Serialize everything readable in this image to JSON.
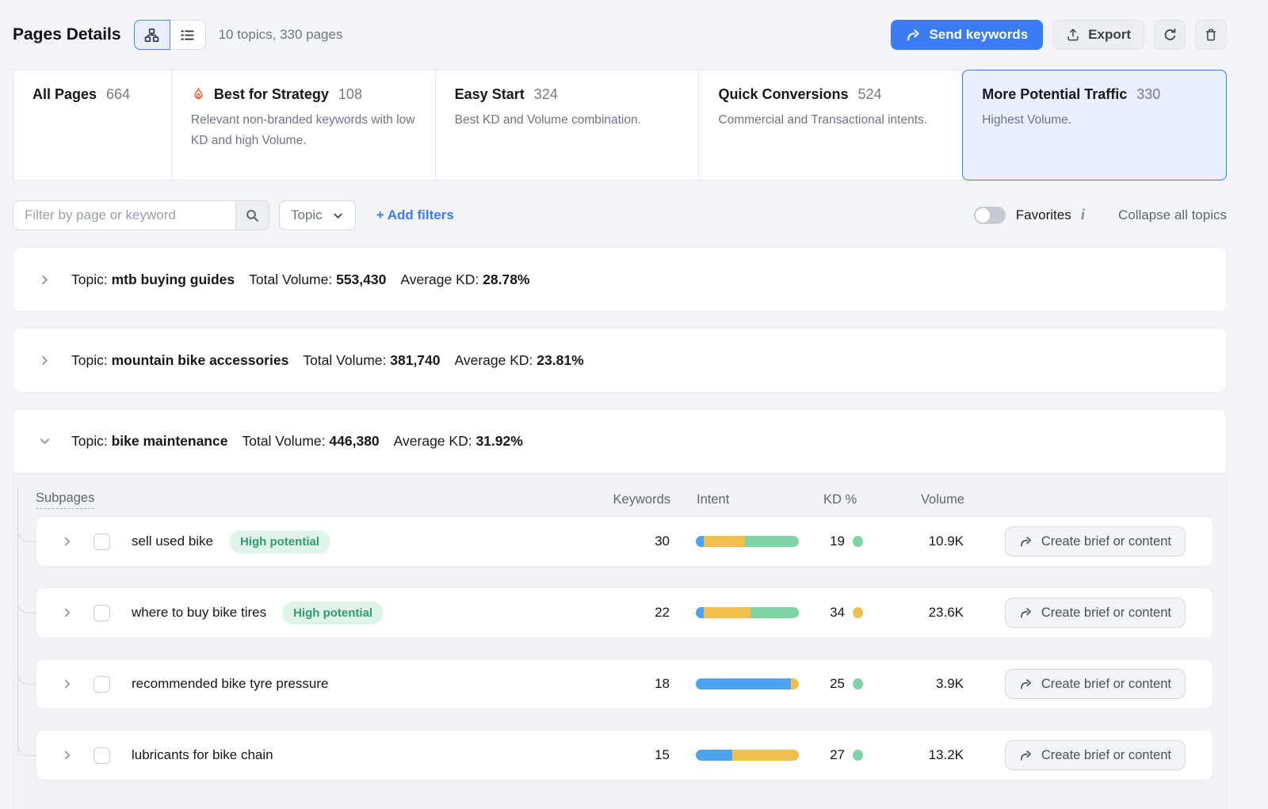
{
  "header": {
    "title": "Pages Details",
    "summary": "10 topics, 330 pages",
    "send_keywords": "Send keywords",
    "export": "Export"
  },
  "tabs": [
    {
      "label": "All Pages",
      "count": "664",
      "description": "",
      "selected": false
    },
    {
      "label": "Best for Strategy",
      "count": "108",
      "description": "Relevant non-branded keywords with low KD and high Volume.",
      "selected": false
    },
    {
      "label": "Easy Start",
      "count": "324",
      "description": "Best KD and Volume combination.",
      "selected": false
    },
    {
      "label": "Quick Conversions",
      "count": "524",
      "description": "Commercial and Transactional intents.",
      "selected": false
    },
    {
      "label": "More Potential Traffic",
      "count": "330",
      "description": "Highest Volume.",
      "selected": true
    }
  ],
  "filter_bar": {
    "search_placeholder": "Filter by page or keyword",
    "topic_dropdown": "Topic",
    "add_filters": "+ Add filters",
    "favorites": "Favorites",
    "favorites_on": false,
    "collapse_all": "Collapse all topics"
  },
  "labels": {
    "topic": "Topic:",
    "total_volume": "Total Volume:",
    "average_kd": "Average KD:"
  },
  "topics": [
    {
      "name": "mtb buying guides",
      "total_volume": "553,430",
      "average_kd": "28.78%",
      "expanded": false
    },
    {
      "name": "mountain bike accessories",
      "total_volume": "381,740",
      "average_kd": "23.81%",
      "expanded": false
    },
    {
      "name": "bike maintenance",
      "total_volume": "446,380",
      "average_kd": "31.92%",
      "expanded": true
    }
  ],
  "table": {
    "columns": {
      "subpages": "Subpages",
      "keywords": "Keywords",
      "intent": "Intent",
      "kd": "KD %",
      "volume": "Volume"
    },
    "action_label": "Create brief or content",
    "rows": [
      {
        "name": "sell used bike",
        "badge": "High potential",
        "keywords": "30",
        "intent": [
          {
            "color": "#4da3f0",
            "pct": 8
          },
          {
            "color": "#f0bf4d",
            "pct": 40
          },
          {
            "color": "#7fd4a3",
            "pct": 52
          }
        ],
        "kd": "19",
        "kd_dot": "#7fd4a3",
        "volume": "10.9K",
        "checked": false
      },
      {
        "name": "where to buy bike tires",
        "badge": "High potential",
        "keywords": "22",
        "intent": [
          {
            "color": "#4da3f0",
            "pct": 8
          },
          {
            "color": "#f0bf4d",
            "pct": 45
          },
          {
            "color": "#7fd4a3",
            "pct": 47
          }
        ],
        "kd": "34",
        "kd_dot": "#f0bf4d",
        "volume": "23.6K",
        "checked": false
      },
      {
        "name": "recommended bike tyre pressure",
        "badge": "",
        "keywords": "18",
        "intent": [
          {
            "color": "#4da3f0",
            "pct": 92
          },
          {
            "color": "#f0bf4d",
            "pct": 8
          }
        ],
        "kd": "25",
        "kd_dot": "#7fd4a3",
        "volume": "3.9K",
        "checked": false
      },
      {
        "name": "lubricants for bike chain",
        "badge": "",
        "keywords": "15",
        "intent": [
          {
            "color": "#4da3f0",
            "pct": 35
          },
          {
            "color": "#f0bf4d",
            "pct": 65
          }
        ],
        "kd": "27",
        "kd_dot": "#7fd4a3",
        "volume": "13.2K",
        "checked": false
      }
    ]
  },
  "colors": {
    "accent_blue": "#3b7cf6",
    "selected_tab_bg": "#e9effc",
    "flame_orange": "#ec6a41",
    "badge_bg": "#e0f4e9",
    "badge_text": "#2f9e68",
    "intent_blue": "#4da3f0",
    "intent_yellow": "#f0bf4d",
    "intent_green": "#7fd4a3",
    "page_bg": "#f4f5f8"
  }
}
